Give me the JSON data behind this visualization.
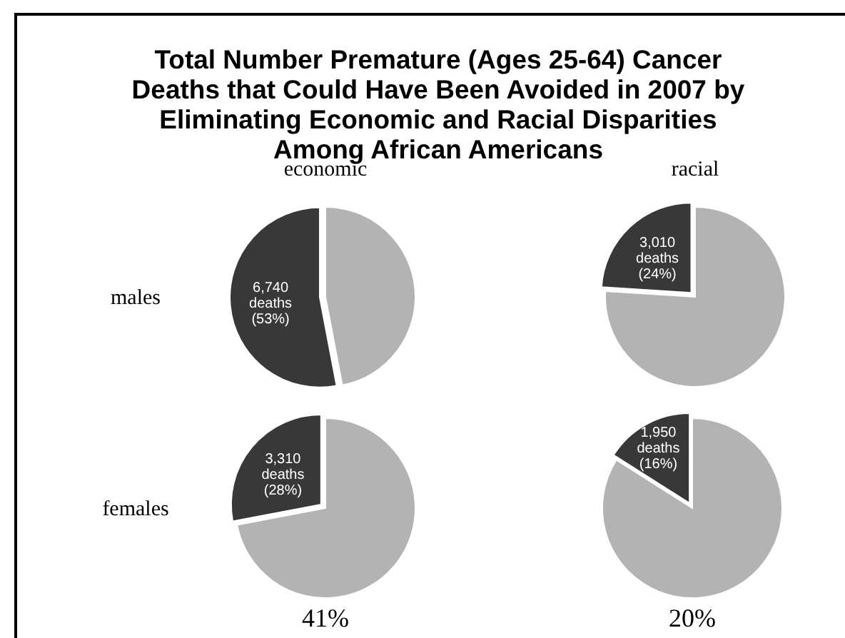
{
  "chart_data": [
    {
      "type": "pie",
      "title": "Total Number Premature (Ages 25-64) Cancer Deaths that Could Have Been Avoided in 2007 by Eliminating Economic and Racial Disparities Among African Americans",
      "subtitle": "economic",
      "ylabel": "males",
      "categories": [
        null,
        null
      ],
      "values": [
        53,
        47
      ],
      "colors": [
        "#383838",
        "#b3b3b3"
      ],
      "value_labels": [
        "6,740\ndeaths\n(53%)",
        null
      ]
    },
    {
      "type": "pie",
      "subtitle": "racial",
      "categories": [
        null,
        null
      ],
      "values": [
        24,
        76
      ],
      "colors": [
        "#383838",
        "#b3b3b3"
      ],
      "value_labels": [
        "3,010\ndeaths\n(24%)",
        null
      ]
    },
    {
      "type": "pie",
      "ylabel": "females",
      "xlabel": "41%",
      "categories": [
        null,
        null
      ],
      "values": [
        28,
        72
      ],
      "colors": [
        "#383838",
        "#b3b3b3"
      ],
      "value_labels": [
        "3,310\ndeaths\n(28%)",
        null
      ]
    },
    {
      "type": "pie",
      "xlabel": "20%",
      "categories": [
        null,
        null
      ],
      "values": [
        16,
        84
      ],
      "colors": [
        "#383838",
        "#b3b3b3"
      ],
      "value_labels": [
        "1,950\ndeaths\n(16%)",
        null
      ]
    }
  ]
}
